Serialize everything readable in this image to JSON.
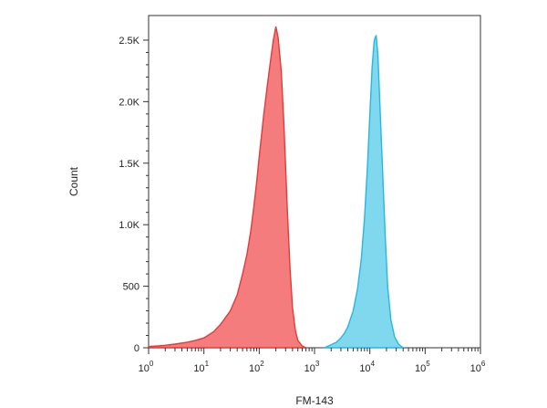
{
  "chart_data": {
    "type": "area",
    "xlabel": "FM-143",
    "ylabel": "Count",
    "x_scale": "log",
    "xlim": [
      1,
      1000000
    ],
    "ylim": [
      0,
      2700
    ],
    "grid": false,
    "x_ticks": [
      {
        "value": 1,
        "base": "10",
        "exp": "0"
      },
      {
        "value": 10,
        "base": "10",
        "exp": "1"
      },
      {
        "value": 100,
        "base": "10",
        "exp": "2"
      },
      {
        "value": 1000,
        "base": "10",
        "exp": "3"
      },
      {
        "value": 10000,
        "base": "10",
        "exp": "4"
      },
      {
        "value": 100000,
        "base": "10",
        "exp": "5"
      },
      {
        "value": 1000000,
        "base": "10",
        "exp": "6"
      }
    ],
    "y_ticks": [
      {
        "value": 0,
        "label": "0"
      },
      {
        "value": 500,
        "label": "500"
      },
      {
        "value": 1000,
        "label": "1.0K"
      },
      {
        "value": 1500,
        "label": "1.5K"
      },
      {
        "value": 2000,
        "label": "2.0K"
      },
      {
        "value": 2500,
        "label": "2.5K"
      }
    ],
    "series": [
      {
        "color": "#f47c7c",
        "stroke": "#e03c3c",
        "x": [
          1,
          1.5,
          2,
          3,
          5,
          7,
          10,
          15,
          20,
          30,
          40,
          50,
          60,
          70,
          80,
          90,
          100,
          120,
          140,
          160,
          180,
          200,
          220,
          250,
          280,
          320,
          360,
          400,
          450,
          500,
          600,
          700
        ],
        "y": [
          10,
          15,
          20,
          30,
          45,
          60,
          80,
          130,
          190,
          300,
          430,
          600,
          760,
          940,
          1150,
          1350,
          1550,
          1880,
          2130,
          2330,
          2500,
          2610,
          2520,
          2250,
          1800,
          1150,
          650,
          320,
          140,
          60,
          15,
          0
        ]
      },
      {
        "color": "#7fd8ee",
        "stroke": "#29b6e0",
        "x": [
          1500,
          2000,
          2500,
          3000,
          3500,
          4000,
          5000,
          6000,
          7000,
          8000,
          9000,
          10000,
          11000,
          12000,
          13000,
          14000,
          15000,
          17000,
          19000,
          21000,
          24000,
          28000,
          33000,
          40000
        ],
        "y": [
          0,
          25,
          45,
          80,
          120,
          170,
          300,
          480,
          720,
          1050,
          1450,
          1900,
          2280,
          2500,
          2540,
          2380,
          2050,
          1450,
          900,
          500,
          230,
          90,
          30,
          0
        ]
      }
    ]
  }
}
